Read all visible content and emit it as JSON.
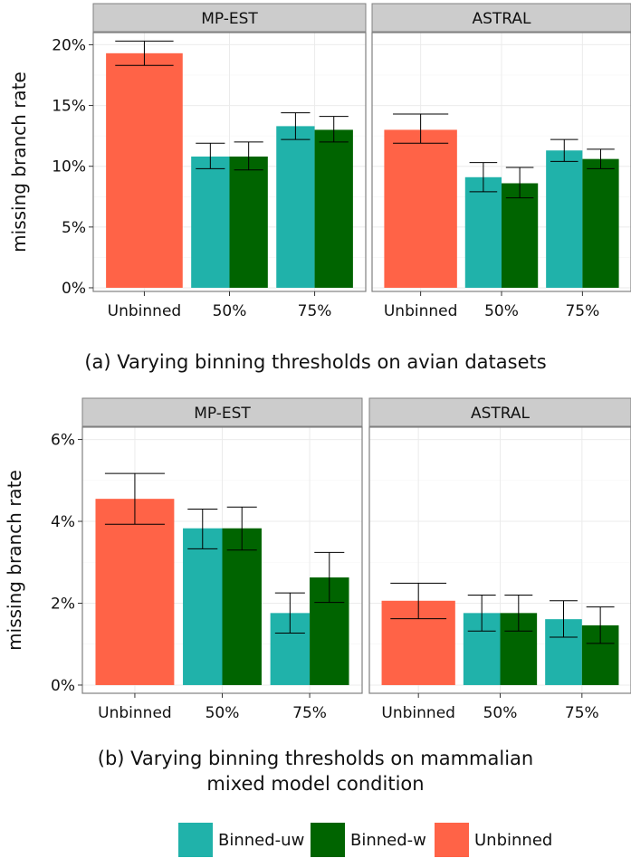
{
  "chart_data": [
    {
      "type": "bar",
      "id": "a",
      "ylabel": "missing branch rate",
      "y_ticks": [
        "0%",
        "5%",
        "10%",
        "15%",
        "20%"
      ],
      "y_tick_values": [
        0,
        5,
        10,
        15,
        20
      ],
      "ylim": [
        -0.3,
        21
      ],
      "categories": [
        "Unbinned",
        "50%",
        "75%"
      ],
      "panels": [
        {
          "title": "MP-EST",
          "bars": [
            {
              "category": "Unbinned",
              "series": "Unbinned",
              "value": 19.3,
              "err_low": 18.3,
              "err_high": 20.3
            },
            {
              "category": "50%",
              "series": "Binned-uw",
              "value": 10.8,
              "err_low": 9.8,
              "err_high": 11.9
            },
            {
              "category": "50%",
              "series": "Binned-w",
              "value": 10.8,
              "err_low": 9.7,
              "err_high": 12.0
            },
            {
              "category": "75%",
              "series": "Binned-uw",
              "value": 13.3,
              "err_low": 12.2,
              "err_high": 14.4
            },
            {
              "category": "75%",
              "series": "Binned-w",
              "value": 13.0,
              "err_low": 12.0,
              "err_high": 14.1
            }
          ]
        },
        {
          "title": "ASTRAL",
          "bars": [
            {
              "category": "Unbinned",
              "series": "Unbinned",
              "value": 13.0,
              "err_low": 11.9,
              "err_high": 14.3
            },
            {
              "category": "50%",
              "series": "Binned-uw",
              "value": 9.1,
              "err_low": 7.9,
              "err_high": 10.3
            },
            {
              "category": "50%",
              "series": "Binned-w",
              "value": 8.6,
              "err_low": 7.4,
              "err_high": 9.9
            },
            {
              "category": "75%",
              "series": "Binned-uw",
              "value": 11.3,
              "err_low": 10.4,
              "err_high": 12.2
            },
            {
              "category": "75%",
              "series": "Binned-w",
              "value": 10.6,
              "err_low": 9.8,
              "err_high": 11.4
            }
          ]
        }
      ]
    },
    {
      "type": "bar",
      "id": "b",
      "ylabel": "missing branch rate",
      "y_ticks": [
        "0%",
        "2%",
        "4%",
        "6%"
      ],
      "y_tick_values": [
        0,
        2,
        4,
        6
      ],
      "ylim": [
        -0.2,
        6.3
      ],
      "categories": [
        "Unbinned",
        "50%",
        "75%"
      ],
      "panels": [
        {
          "title": "MP-EST",
          "bars": [
            {
              "category": "Unbinned",
              "series": "Unbinned",
              "value": 4.55,
              "err_low": 3.93,
              "err_high": 5.17
            },
            {
              "category": "50%",
              "series": "Binned-uw",
              "value": 3.83,
              "err_low": 3.33,
              "err_high": 4.3
            },
            {
              "category": "50%",
              "series": "Binned-w",
              "value": 3.83,
              "err_low": 3.3,
              "err_high": 4.35
            },
            {
              "category": "75%",
              "series": "Binned-uw",
              "value": 1.76,
              "err_low": 1.27,
              "err_high": 2.25
            },
            {
              "category": "75%",
              "series": "Binned-w",
              "value": 2.63,
              "err_low": 2.02,
              "err_high": 3.24
            }
          ]
        },
        {
          "title": "ASTRAL",
          "bars": [
            {
              "category": "Unbinned",
              "series": "Unbinned",
              "value": 2.06,
              "err_low": 1.62,
              "err_high": 2.49
            },
            {
              "category": "50%",
              "series": "Binned-uw",
              "value": 1.76,
              "err_low": 1.32,
              "err_high": 2.2
            },
            {
              "category": "50%",
              "series": "Binned-w",
              "value": 1.76,
              "err_low": 1.32,
              "err_high": 2.2
            },
            {
              "category": "75%",
              "series": "Binned-uw",
              "value": 1.61,
              "err_low": 1.17,
              "err_high": 2.06
            },
            {
              "category": "75%",
              "series": "Binned-w",
              "value": 1.46,
              "err_low": 1.02,
              "err_high": 1.91
            }
          ]
        }
      ]
    }
  ],
  "captions": {
    "a": "(a) Varying binning thresholds on avian datasets",
    "b_line1": "(b) Varying binning thresholds on mammalian",
    "b_line2": "mixed model condition"
  },
  "legend": [
    {
      "label": "Binned-uw",
      "color": "#20b2aa"
    },
    {
      "label": "Binned-w",
      "color": "#006400"
    },
    {
      "label": "Unbinned",
      "color": "#ff6347"
    }
  ],
  "colors": {
    "Unbinned": "#ff6347",
    "Binned-uw": "#20b2aa",
    "Binned-w": "#006400",
    "strip": "#cccccc",
    "panel_border": "#808080",
    "grid_major": "#ebebeb"
  }
}
